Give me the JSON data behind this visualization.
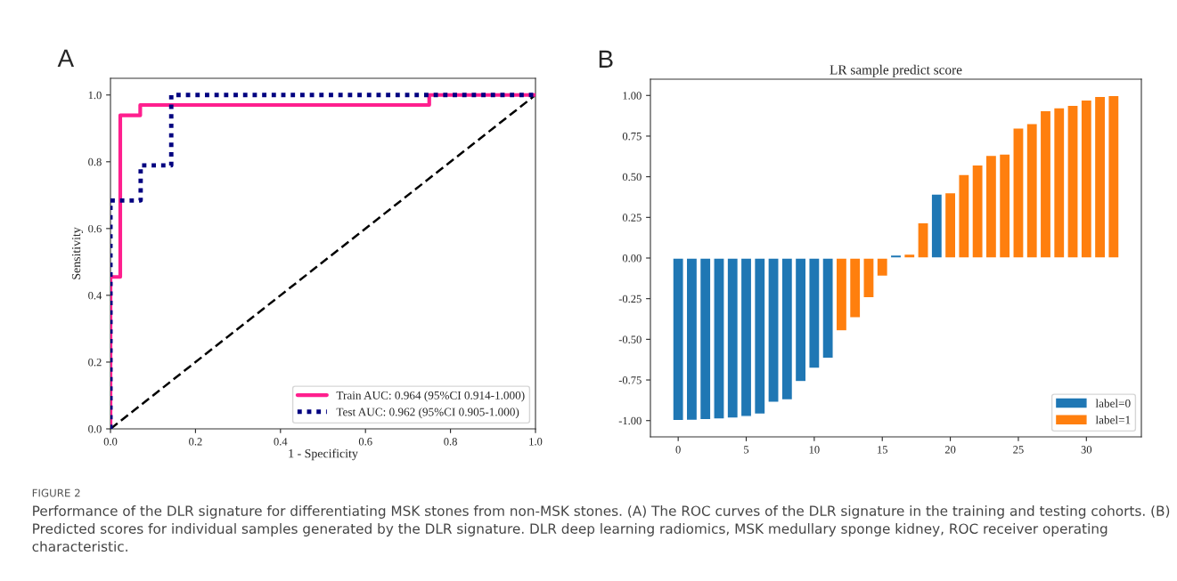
{
  "chart_data": [
    {
      "type": "line",
      "xlabel": "1 - Specificity",
      "ylabel": "Sensitivity",
      "annotations": [
        "A",
        "FIGURE 2",
        "Performance of the DLR signature for differentiating MSK stones from non-MSK stones. (A) The ROC curves of the DLR signature in the training and testing cohorts. (B) Predicted scores for individual samples generated by the DLR signature. DLR deep learning radiomics, MSK medullary sponge kidney, ROC receiver operating characteristic."
      ],
      "series": [
        {
          "name": "Train AUC: 0.964 (95%CI 0.914-1.000)",
          "color": "#ff1f8e",
          "line_style": "solid",
          "x": [
            0,
            0,
            0.023,
            0.023,
            0.07,
            0.07,
            0.75,
            0.75,
            1
          ],
          "values": [
            0,
            0.455,
            0.455,
            0.939,
            0.939,
            0.97,
            0.97,
            1,
            1
          ]
        },
        {
          "name": "Test AUC: 0.962 (95%CI 0.905-1.000)",
          "color": "#000080",
          "line_style": "dotted",
          "x": [
            0,
            0,
            0.071,
            0.071,
            0.143,
            0.143,
            1
          ],
          "values": [
            0,
            0.684,
            0.684,
            0.789,
            0.789,
            1,
            1
          ]
        },
        {
          "color": "#000000",
          "line_style": "dashed",
          "x": [
            0,
            1
          ],
          "values": [
            0,
            1
          ]
        }
      ],
      "xlim": [
        0,
        1
      ],
      "ylim": [
        0,
        1.05
      ],
      "xticks": [
        {
          "value": 0,
          "label": "0.0"
        },
        {
          "value": 0.2,
          "label": "0.2"
        },
        {
          "value": 0.4,
          "label": "0.4"
        },
        {
          "value": 0.6,
          "label": "0.6"
        },
        {
          "value": 0.8,
          "label": "0.8"
        },
        {
          "value": 1,
          "label": "1.0"
        }
      ],
      "yticks": [
        {
          "value": 0,
          "label": "0.0"
        },
        {
          "value": 0.2,
          "label": "0.2"
        },
        {
          "value": 0.4,
          "label": "0.4"
        },
        {
          "value": 0.6,
          "label": "0.6"
        },
        {
          "value": 0.8,
          "label": "0.8"
        },
        {
          "value": 1,
          "label": "1.0"
        }
      ],
      "legend": "bottom right",
      "grid": false
    },
    {
      "type": "bar",
      "title": "LR sample predict score",
      "annotations": [
        "B"
      ],
      "x": [
        0,
        1,
        2,
        3,
        4,
        5,
        6,
        7,
        8,
        9,
        10,
        11,
        12,
        13,
        14,
        15,
        16,
        17,
        18,
        19,
        20,
        21,
        22,
        23,
        24,
        25,
        26,
        27,
        28,
        29,
        30,
        31,
        32
      ],
      "series": [
        {
          "name": "label=0",
          "color": "#1f77b4",
          "values": [
            -1.0,
            -0.998,
            -0.995,
            -0.99,
            -0.985,
            -0.975,
            -0.96,
            -0.888,
            -0.872,
            -0.76,
            -0.678,
            -0.617,
            null,
            null,
            null,
            null,
            0.019,
            null,
            null,
            0.394,
            null,
            null,
            null,
            null,
            null,
            null,
            null,
            null,
            null,
            null,
            null,
            null,
            null
          ]
        },
        {
          "name": "label=1",
          "color": "#ff7f0e",
          "values": [
            null,
            null,
            null,
            null,
            null,
            null,
            null,
            null,
            null,
            null,
            null,
            null,
            -0.448,
            -0.368,
            -0.245,
            -0.112,
            null,
            0.025,
            0.217,
            null,
            0.402,
            0.514,
            0.573,
            0.632,
            0.64,
            0.8,
            0.827,
            0.907,
            0.925,
            0.94,
            0.973,
            0.995,
            1.0
          ]
        }
      ],
      "xlim": [
        -2.04,
        34.04
      ],
      "ylim": [
        -1.1,
        1.1
      ],
      "xticks": [
        0,
        5,
        10,
        15,
        20,
        25,
        30
      ],
      "yticks": [
        {
          "value": -1,
          "label": "-1.00"
        },
        {
          "value": -0.75,
          "label": "-0.75"
        },
        {
          "value": -0.5,
          "label": "-0.50"
        },
        {
          "value": -0.25,
          "label": "-0.25"
        },
        {
          "value": 0,
          "label": "0.00"
        },
        {
          "value": 0.25,
          "label": "0.25"
        },
        {
          "value": 0.5,
          "label": "0.50"
        },
        {
          "value": 0.75,
          "label": "0.75"
        },
        {
          "value": 1,
          "label": "1.00"
        }
      ],
      "legend": "bottom right",
      "grid": false
    }
  ]
}
